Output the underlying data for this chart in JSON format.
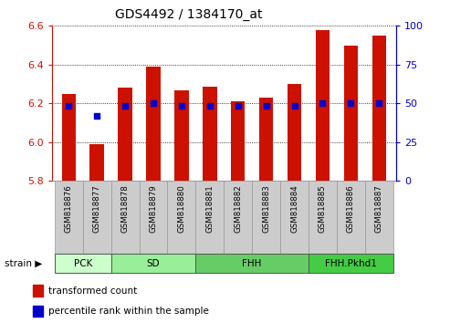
{
  "title": "GDS4492 / 1384170_at",
  "categories": [
    "GSM818876",
    "GSM818877",
    "GSM818878",
    "GSM818879",
    "GSM818880",
    "GSM818881",
    "GSM818882",
    "GSM818883",
    "GSM818884",
    "GSM818885",
    "GSM818886",
    "GSM818887"
  ],
  "bar_values": [
    6.25,
    5.99,
    6.28,
    6.39,
    6.265,
    6.285,
    6.21,
    6.23,
    6.3,
    6.58,
    6.5,
    6.55
  ],
  "percentile_values": [
    6.185,
    6.135,
    6.185,
    6.2,
    6.185,
    6.185,
    6.185,
    6.185,
    6.185,
    6.2,
    6.2,
    6.2
  ],
  "bar_color": "#cc1100",
  "dot_color": "#0000cc",
  "baseline": 5.8,
  "ylim_left": [
    5.8,
    6.6
  ],
  "ylim_right": [
    0,
    100
  ],
  "yticks_left": [
    5.8,
    6.0,
    6.2,
    6.4,
    6.6
  ],
  "yticks_right": [
    0,
    25,
    50,
    75,
    100
  ],
  "groups": [
    {
      "label": "PCK",
      "start": 0,
      "end": 2
    },
    {
      "label": "SD",
      "start": 2,
      "end": 5
    },
    {
      "label": "FHH",
      "start": 5,
      "end": 9
    },
    {
      "label": "FHH.Pkhd1",
      "start": 9,
      "end": 12
    }
  ],
  "group_colors": [
    "#ccffcc",
    "#99ee99",
    "#66cc66",
    "#44cc44"
  ],
  "legend_items": [
    {
      "label": "transformed count",
      "color": "#cc1100"
    },
    {
      "label": "percentile rank within the sample",
      "color": "#0000cc"
    }
  ],
  "left_axis_color": "#cc1100",
  "right_axis_color": "#0000cc",
  "tick_bg_color": "#cccccc",
  "tick_border_color": "#999999",
  "plot_bg_color": "#ffffff",
  "grid_color": "#000000",
  "bar_width": 0.5
}
